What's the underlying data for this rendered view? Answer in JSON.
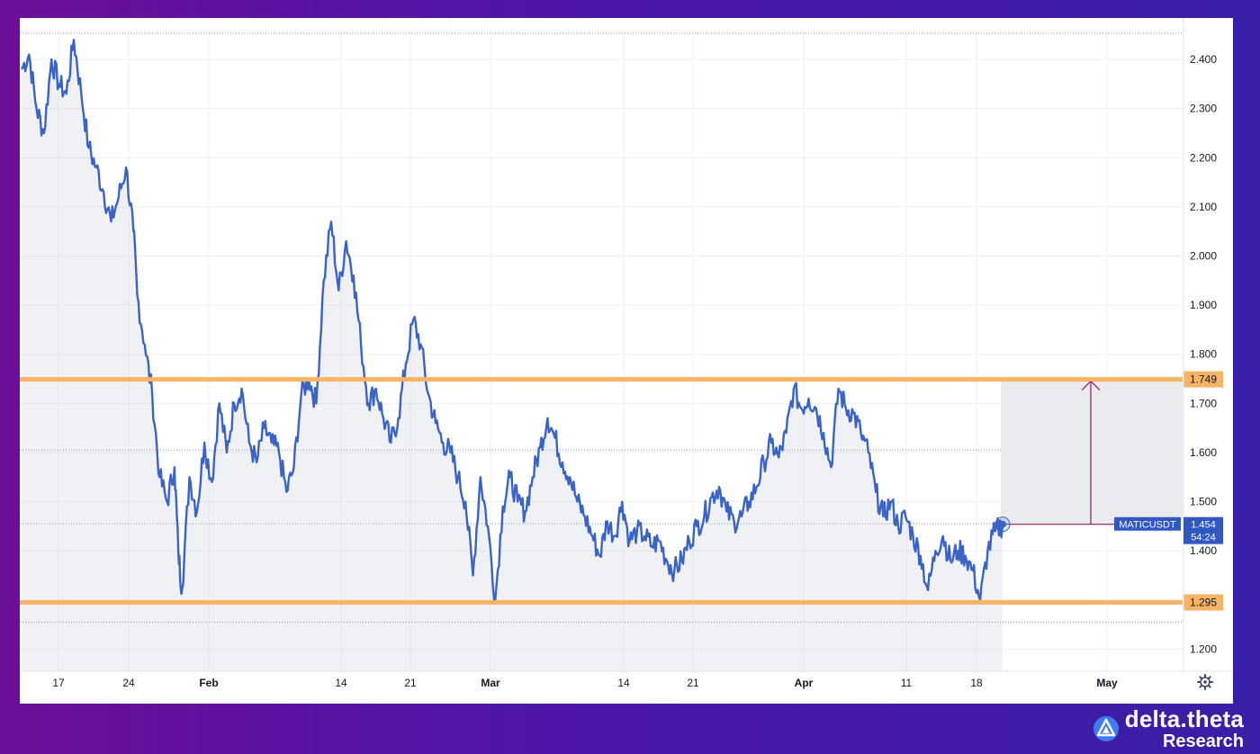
{
  "chart_data": {
    "type": "line",
    "symbol": "MATICUSDT",
    "current_price": "1.454",
    "countdown": "54:24",
    "price_axis": {
      "ylim": [
        1.155,
        2.455
      ],
      "ticks": [
        "2.400",
        "2.300",
        "2.200",
        "2.100",
        "2.000",
        "1.900",
        "1.800",
        "1.700",
        "1.600",
        "1.500",
        "1.400",
        "1.200"
      ]
    },
    "time_axis": {
      "ticks": [
        {
          "label": "17",
          "bold": false
        },
        {
          "label": "24",
          "bold": false
        },
        {
          "label": "Feb",
          "bold": true
        },
        {
          "label": "14",
          "bold": false
        },
        {
          "label": "21",
          "bold": false
        },
        {
          "label": "Mar",
          "bold": true
        },
        {
          "label": "14",
          "bold": false
        },
        {
          "label": "21",
          "bold": false
        },
        {
          "label": "Apr",
          "bold": true
        },
        {
          "label": "11",
          "bold": false
        },
        {
          "label": "18",
          "bold": false
        },
        {
          "label": "May",
          "bold": true
        }
      ]
    },
    "levels": [
      {
        "value": 1.749,
        "label": "1.749",
        "color": "#f7b366"
      },
      {
        "value": 1.295,
        "label": "1.295",
        "color": "#f7b366"
      }
    ],
    "series": [
      {
        "color": "#3a63c6",
        "points": [
          [
            0,
            2.38
          ],
          [
            2,
            2.41
          ],
          [
            4,
            2.3
          ],
          [
            6,
            2.25
          ],
          [
            8,
            2.4
          ],
          [
            10,
            2.35
          ],
          [
            12,
            2.33
          ],
          [
            14,
            2.44
          ],
          [
            16,
            2.33
          ],
          [
            18,
            2.22
          ],
          [
            20,
            2.18
          ],
          [
            22,
            2.13
          ],
          [
            24,
            2.07
          ],
          [
            26,
            2.12
          ],
          [
            28,
            2.18
          ],
          [
            30,
            2.05
          ],
          [
            31,
            1.92
          ],
          [
            33,
            1.82
          ],
          [
            35,
            1.72
          ],
          [
            37,
            1.55
          ],
          [
            39,
            1.5
          ],
          [
            41,
            1.57
          ],
          [
            42,
            1.4
          ],
          [
            43,
            1.32
          ],
          [
            45,
            1.55
          ],
          [
            47,
            1.48
          ],
          [
            49,
            1.62
          ],
          [
            51,
            1.54
          ],
          [
            53,
            1.7
          ],
          [
            55,
            1.6
          ],
          [
            57,
            1.7
          ],
          [
            59,
            1.73
          ],
          [
            61,
            1.62
          ],
          [
            63,
            1.58
          ],
          [
            65,
            1.65
          ],
          [
            67,
            1.62
          ],
          [
            69,
            1.6
          ],
          [
            71,
            1.52
          ],
          [
            73,
            1.57
          ],
          [
            75,
            1.72
          ],
          [
            77,
            1.75
          ],
          [
            79,
            1.7
          ],
          [
            81,
            1.95
          ],
          [
            83,
            2.07
          ],
          [
            85,
            1.93
          ],
          [
            87,
            2.03
          ],
          [
            89,
            1.96
          ],
          [
            91,
            1.82
          ],
          [
            93,
            1.7
          ],
          [
            95,
            1.73
          ],
          [
            97,
            1.67
          ],
          [
            99,
            1.62
          ],
          [
            101,
            1.67
          ],
          [
            103,
            1.78
          ],
          [
            105,
            1.87
          ],
          [
            107,
            1.82
          ],
          [
            109,
            1.72
          ],
          [
            111,
            1.66
          ],
          [
            113,
            1.62
          ],
          [
            115,
            1.6
          ],
          [
            117,
            1.55
          ],
          [
            119,
            1.5
          ],
          [
            121,
            1.35
          ],
          [
            123,
            1.55
          ],
          [
            125,
            1.45
          ],
          [
            127,
            1.3
          ],
          [
            129,
            1.49
          ],
          [
            131,
            1.55
          ],
          [
            133,
            1.5
          ],
          [
            135,
            1.48
          ],
          [
            137,
            1.55
          ],
          [
            139,
            1.61
          ],
          [
            141,
            1.67
          ],
          [
            143,
            1.63
          ],
          [
            145,
            1.58
          ],
          [
            147,
            1.55
          ],
          [
            149,
            1.5
          ],
          [
            151,
            1.47
          ],
          [
            153,
            1.43
          ],
          [
            155,
            1.39
          ],
          [
            157,
            1.46
          ],
          [
            159,
            1.43
          ],
          [
            161,
            1.5
          ],
          [
            163,
            1.42
          ],
          [
            165,
            1.44
          ],
          [
            167,
            1.43
          ],
          [
            169,
            1.41
          ],
          [
            171,
            1.42
          ],
          [
            173,
            1.38
          ],
          [
            175,
            1.36
          ],
          [
            177,
            1.38
          ],
          [
            179,
            1.42
          ],
          [
            181,
            1.45
          ],
          [
            183,
            1.47
          ],
          [
            185,
            1.51
          ],
          [
            187,
            1.53
          ],
          [
            189,
            1.48
          ],
          [
            191,
            1.46
          ],
          [
            193,
            1.47
          ],
          [
            195,
            1.5
          ],
          [
            197,
            1.53
          ],
          [
            199,
            1.58
          ],
          [
            201,
            1.62
          ],
          [
            203,
            1.59
          ],
          [
            205,
            1.64
          ],
          [
            207,
            1.73
          ],
          [
            209,
            1.69
          ],
          [
            211,
            1.71
          ],
          [
            213,
            1.69
          ],
          [
            215,
            1.64
          ],
          [
            217,
            1.57
          ],
          [
            219,
            1.73
          ],
          [
            221,
            1.69
          ],
          [
            223,
            1.68
          ],
          [
            225,
            1.64
          ],
          [
            227,
            1.6
          ],
          [
            229,
            1.52
          ],
          [
            231,
            1.47
          ],
          [
            233,
            1.5
          ],
          [
            235,
            1.45
          ],
          [
            237,
            1.47
          ],
          [
            239,
            1.43
          ],
          [
            241,
            1.39
          ],
          [
            243,
            1.32
          ],
          [
            245,
            1.4
          ],
          [
            247,
            1.43
          ],
          [
            249,
            1.38
          ],
          [
            251,
            1.4
          ],
          [
            253,
            1.39
          ],
          [
            255,
            1.36
          ],
          [
            257,
            1.3
          ],
          [
            259,
            1.4
          ],
          [
            261,
            1.44
          ],
          [
            263,
            1.454
          ]
        ]
      }
    ]
  },
  "brand": {
    "name": "delta.theta",
    "sub": "Research"
  }
}
